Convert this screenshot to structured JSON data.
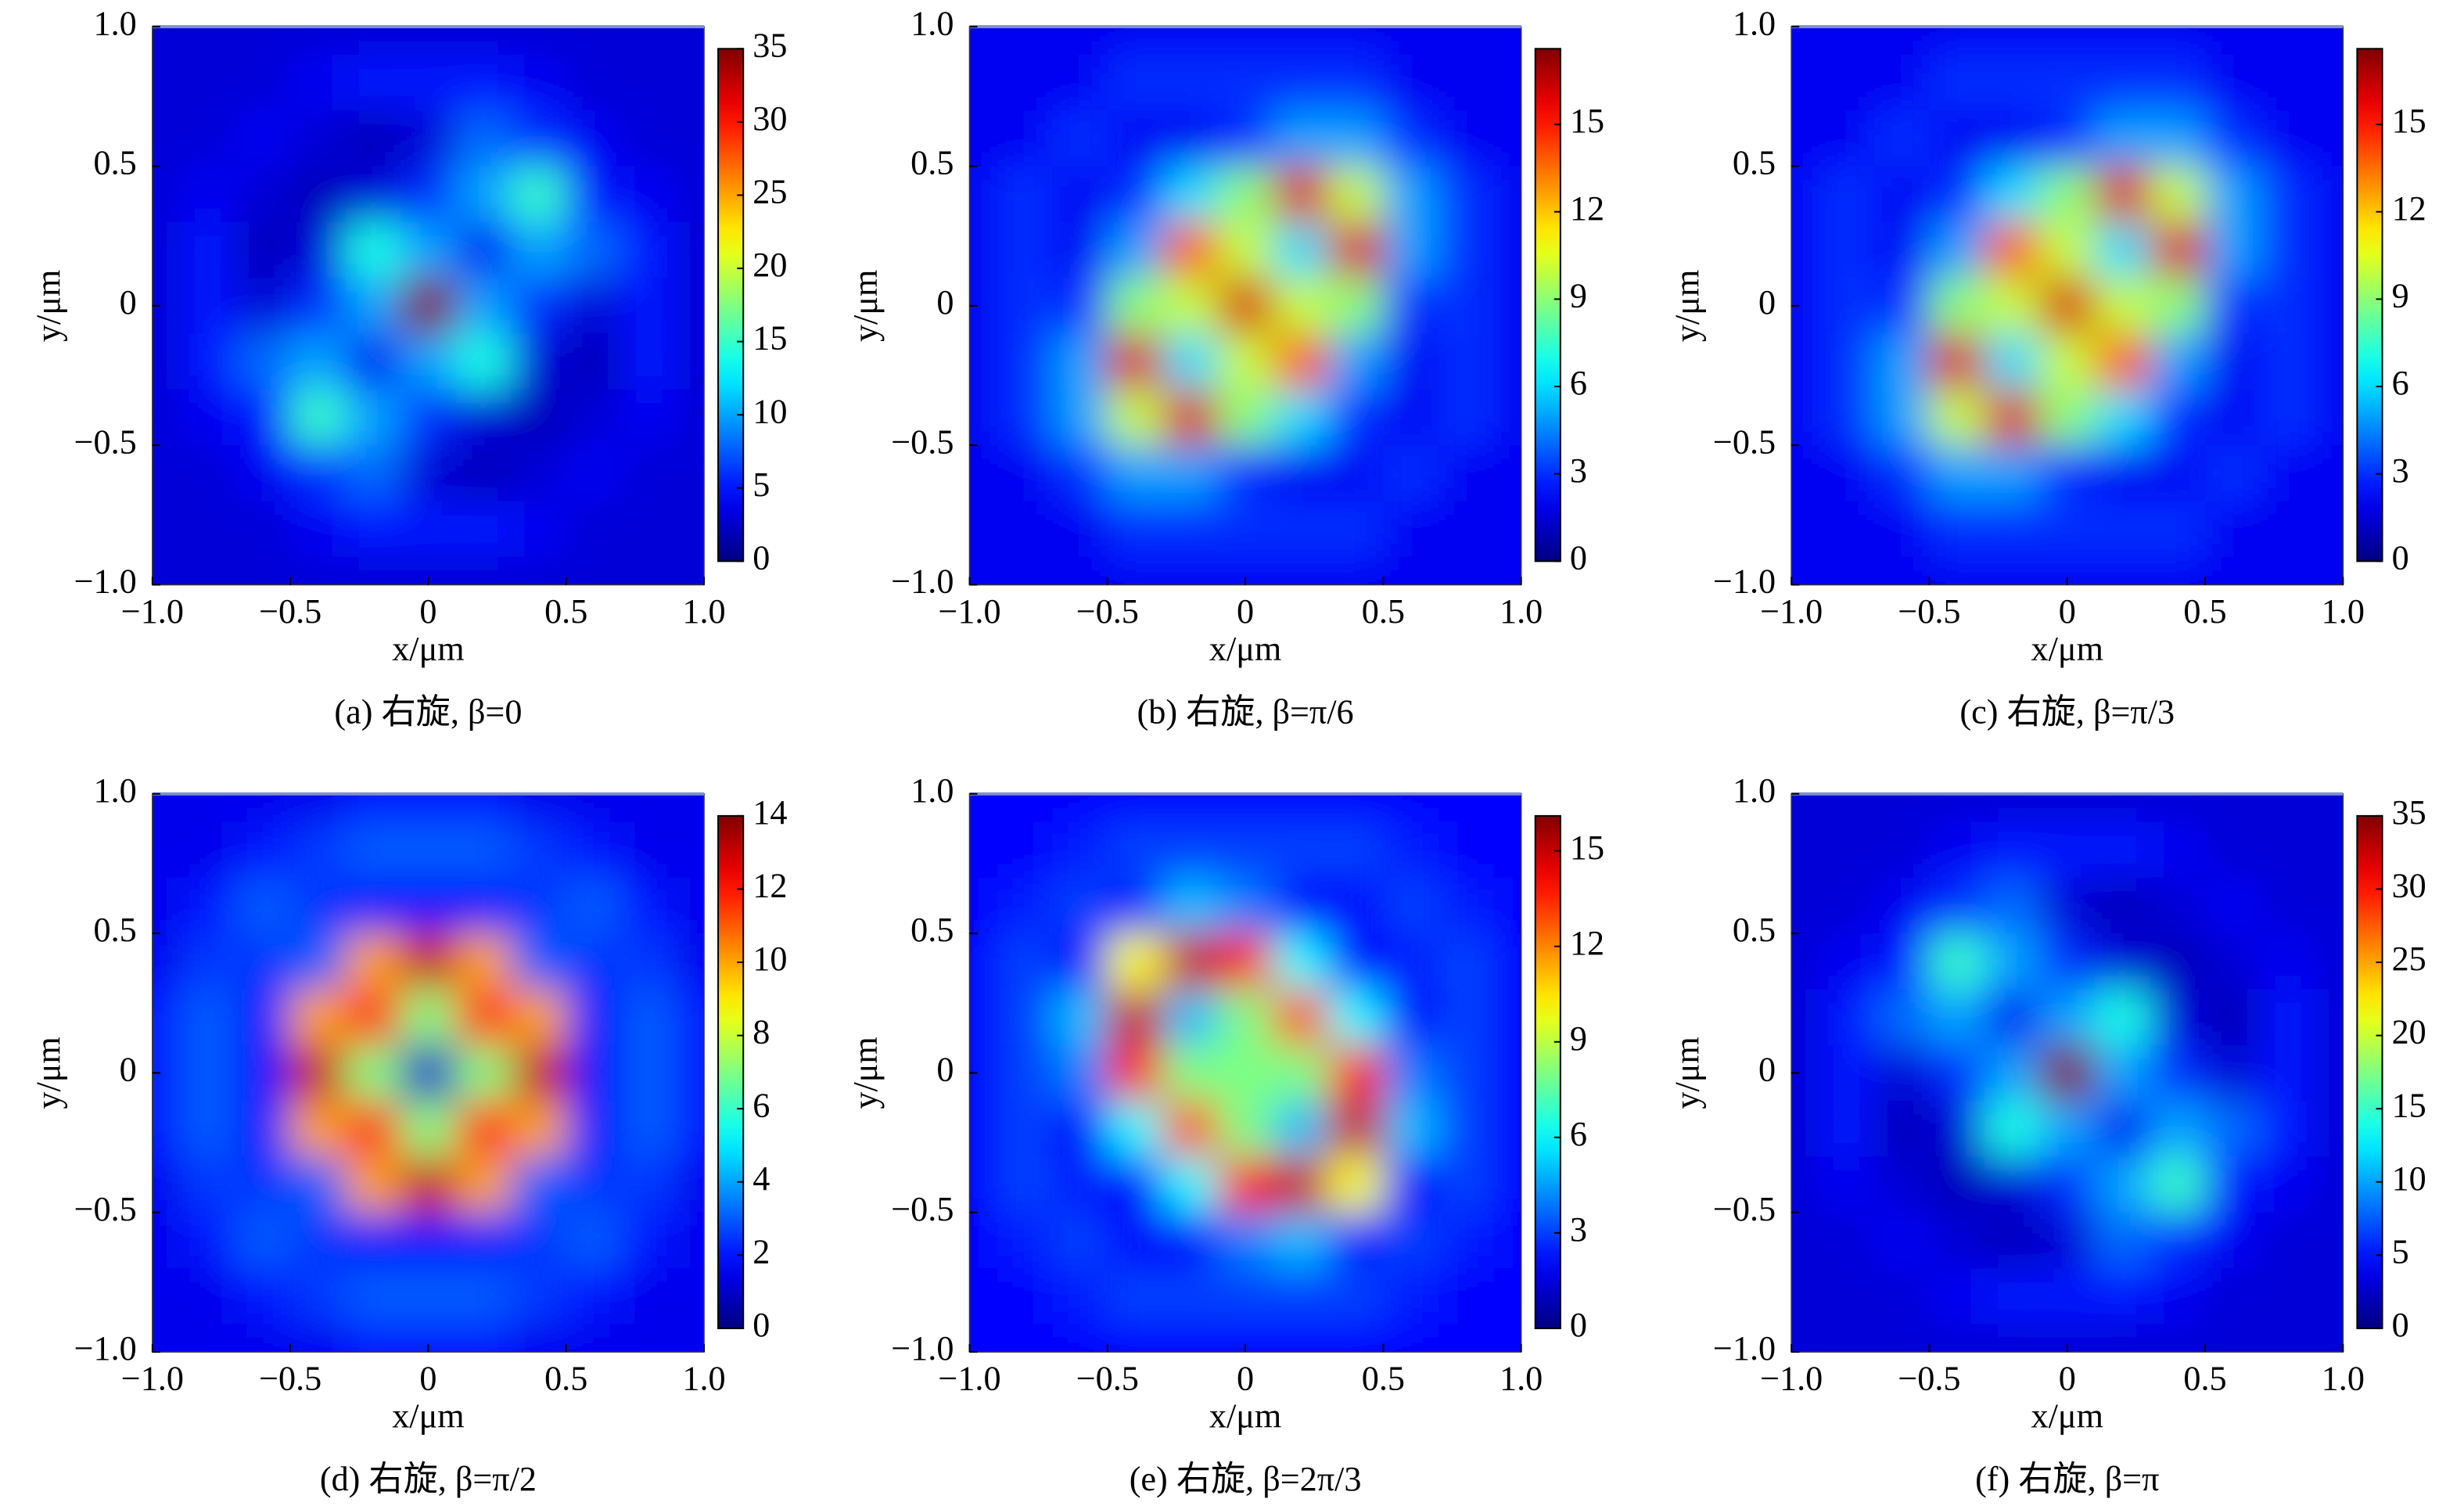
{
  "chart_data": [
    {
      "type": "heatmap",
      "caption": "(a) 右旋, β=0",
      "xlabel": "x/μm",
      "ylabel": "y/μm",
      "colormap": "jet",
      "x": [
        -1,
        -0.8,
        -0.6,
        -0.4,
        -0.2,
        0,
        0.2,
        0.4,
        0.6,
        0.8,
        1
      ],
      "y": [
        1,
        0.8,
        0.6,
        0.4,
        0.2,
        0,
        -0.2,
        -0.4,
        -0.6,
        -0.8,
        -1
      ],
      "z": [
        [
          3,
          3,
          3,
          3,
          3,
          3,
          3,
          3,
          3,
          3,
          3
        ],
        [
          3,
          3,
          3,
          4,
          5,
          5,
          5,
          4,
          3,
          3,
          3
        ],
        [
          3,
          3,
          4,
          3,
          2,
          3,
          8,
          6,
          4,
          3,
          3
        ],
        [
          3,
          4,
          3,
          2,
          3,
          6,
          10,
          15,
          5,
          4,
          3
        ],
        [
          3,
          5,
          2,
          3,
          14,
          10,
          4,
          10,
          8,
          5,
          3
        ],
        [
          3,
          5,
          3,
          6,
          10,
          35,
          10,
          6,
          3,
          5,
          3
        ],
        [
          3,
          5,
          8,
          10,
          4,
          10,
          14,
          3,
          2,
          5,
          3
        ],
        [
          3,
          4,
          5,
          15,
          10,
          6,
          3,
          2,
          3,
          4,
          3
        ],
        [
          3,
          3,
          4,
          6,
          8,
          3,
          2,
          3,
          4,
          3,
          3
        ],
        [
          3,
          3,
          3,
          4,
          5,
          5,
          5,
          4,
          3,
          3,
          3
        ],
        [
          3,
          3,
          3,
          3,
          3,
          3,
          3,
          3,
          3,
          3,
          3
        ]
      ],
      "xlim": [
        -1,
        1
      ],
      "ylim": [
        -1,
        1
      ],
      "xticks": [
        {
          "value": -1,
          "label": "−1.0"
        },
        {
          "value": -0.5,
          "label": "−0.5"
        },
        0,
        0.5,
        {
          "value": 1,
          "label": "1.0"
        }
      ],
      "yticks": [
        {
          "value": -1,
          "label": "−1.0"
        },
        {
          "value": -0.5,
          "label": "−0.5"
        },
        0,
        0.5,
        {
          "value": 1,
          "label": "1.0"
        }
      ],
      "zlim": [
        0,
        35
      ],
      "zticks": [
        0,
        5,
        10,
        15,
        20,
        25,
        30,
        35
      ]
    },
    {
      "type": "heatmap",
      "caption": "(b) 右旋, β=π/6",
      "xlabel": "x/μm",
      "ylabel": "y/μm",
      "colormap": "jet",
      "x": [
        -1,
        -0.8,
        -0.6,
        -0.4,
        -0.2,
        0,
        0.2,
        0.4,
        0.6,
        0.8,
        1
      ],
      "y": [
        1,
        0.8,
        0.6,
        0.4,
        0.2,
        0,
        -0.2,
        -0.4,
        -0.6,
        -0.8,
        -1
      ],
      "z": [
        [
          2,
          2,
          2,
          2,
          2,
          2,
          2,
          2,
          2,
          2,
          2
        ],
        [
          2,
          2,
          2,
          3,
          3,
          3,
          3,
          3,
          2,
          2,
          2
        ],
        [
          2,
          2,
          3,
          2,
          2,
          3,
          5,
          5,
          3,
          2,
          2
        ],
        [
          2,
          3,
          2,
          3,
          6,
          9,
          16,
          10,
          5,
          3,
          2
        ],
        [
          2,
          3,
          2,
          5,
          14,
          10,
          6,
          16,
          5,
          3,
          2
        ],
        [
          2,
          3,
          3,
          9,
          10,
          16,
          10,
          9,
          3,
          3,
          2
        ],
        [
          2,
          3,
          5,
          16,
          6,
          10,
          14,
          5,
          2,
          3,
          2
        ],
        [
          2,
          3,
          5,
          10,
          16,
          9,
          6,
          3,
          2,
          3,
          2
        ],
        [
          2,
          2,
          3,
          5,
          5,
          3,
          2,
          2,
          3,
          2,
          2
        ],
        [
          2,
          2,
          2,
          3,
          3,
          3,
          3,
          3,
          2,
          2,
          2
        ],
        [
          2,
          2,
          2,
          2,
          2,
          2,
          2,
          2,
          2,
          2,
          2
        ]
      ],
      "xlim": [
        -1,
        1
      ],
      "ylim": [
        -1,
        1
      ],
      "xticks": [
        {
          "value": -1,
          "label": "−1.0"
        },
        {
          "value": -0.5,
          "label": "−0.5"
        },
        0,
        0.5,
        {
          "value": 1,
          "label": "1.0"
        }
      ],
      "yticks": [
        {
          "value": -1,
          "label": "−1.0"
        },
        {
          "value": -0.5,
          "label": "−0.5"
        },
        0,
        0.5,
        {
          "value": 1,
          "label": "1.0"
        }
      ],
      "zlim": [
        0,
        17.6
      ],
      "zticks": [
        0,
        3,
        6,
        9,
        12,
        15
      ]
    },
    {
      "type": "heatmap",
      "caption": "(c) 右旋, β=π/3",
      "xlabel": "x/μm",
      "ylabel": "y/μm",
      "colormap": "jet",
      "x": [
        -1,
        -0.8,
        -0.6,
        -0.4,
        -0.2,
        0,
        0.2,
        0.4,
        0.6,
        0.8,
        1
      ],
      "y": [
        1,
        0.8,
        0.6,
        0.4,
        0.2,
        0,
        -0.2,
        -0.4,
        -0.6,
        -0.8,
        -1
      ],
      "z": [
        [
          2,
          2,
          2,
          2,
          2,
          2,
          2,
          2,
          2,
          2,
          2
        ],
        [
          2,
          2,
          2,
          3,
          3,
          3,
          3,
          3,
          2,
          2,
          2
        ],
        [
          2,
          2,
          3,
          2,
          2,
          3,
          5,
          5,
          3,
          2,
          2
        ],
        [
          2,
          3,
          2,
          3,
          6,
          9,
          16,
          10,
          5,
          3,
          2
        ],
        [
          2,
          3,
          2,
          5,
          14,
          10,
          6,
          16,
          5,
          3,
          2
        ],
        [
          2,
          3,
          3,
          9,
          10,
          16,
          10,
          9,
          3,
          3,
          2
        ],
        [
          2,
          3,
          5,
          16,
          6,
          10,
          14,
          5,
          2,
          3,
          2
        ],
        [
          2,
          3,
          5,
          10,
          16,
          9,
          6,
          3,
          2,
          3,
          2
        ],
        [
          2,
          2,
          3,
          5,
          5,
          3,
          2,
          2,
          3,
          2,
          2
        ],
        [
          2,
          2,
          2,
          3,
          3,
          3,
          3,
          3,
          2,
          2,
          2
        ],
        [
          2,
          2,
          2,
          2,
          2,
          2,
          2,
          2,
          2,
          2,
          2
        ]
      ],
      "xlim": [
        -1,
        1
      ],
      "ylim": [
        -1,
        1
      ],
      "xticks": [
        {
          "value": -1,
          "label": "−1.0"
        },
        {
          "value": -0.5,
          "label": "−0.5"
        },
        0,
        0.5,
        {
          "value": 1,
          "label": "1.0"
        }
      ],
      "yticks": [
        {
          "value": -1,
          "label": "−1.0"
        },
        {
          "value": -0.5,
          "label": "−0.5"
        },
        0,
        0.5,
        {
          "value": 1,
          "label": "1.0"
        }
      ],
      "zlim": [
        0,
        17.6
      ],
      "zticks": [
        0,
        3,
        6,
        9,
        12,
        15
      ]
    },
    {
      "type": "heatmap",
      "caption": "(d) 右旋, β=π/2",
      "xlabel": "x/μm",
      "ylabel": "y/μm",
      "colormap": "jet",
      "x": [
        -1,
        -0.8,
        -0.6,
        -0.4,
        -0.2,
        0,
        0.2,
        0.4,
        0.6,
        0.8,
        1
      ],
      "y": [
        1,
        0.8,
        0.6,
        0.4,
        0.2,
        0,
        -0.2,
        -0.4,
        -0.6,
        -0.8,
        -1
      ],
      "z": [
        [
          1.5,
          1.5,
          1.5,
          1.5,
          2,
          2,
          2,
          1.5,
          1.5,
          1.5,
          1.5
        ],
        [
          1.5,
          1.5,
          2,
          2.5,
          3,
          3,
          3,
          2.5,
          2,
          1.5,
          1.5
        ],
        [
          1.5,
          2,
          3,
          2.5,
          2,
          2,
          2,
          2.5,
          3,
          2,
          1.5
        ],
        [
          1.5,
          2.5,
          2.5,
          3,
          10,
          13,
          10,
          3,
          2.5,
          2.5,
          1.5
        ],
        [
          2,
          3,
          2,
          10,
          12,
          7,
          12,
          10,
          2,
          3,
          2
        ],
        [
          2,
          3,
          2,
          13,
          7,
          1,
          7,
          13,
          2,
          3,
          2
        ],
        [
          2,
          3,
          2,
          10,
          12,
          7,
          12,
          10,
          2,
          3,
          2
        ],
        [
          1.5,
          2.5,
          2.5,
          3,
          10,
          13,
          10,
          3,
          2.5,
          2.5,
          1.5
        ],
        [
          1.5,
          2,
          3,
          2.5,
          2,
          2,
          2,
          2.5,
          3,
          2,
          1.5
        ],
        [
          1.5,
          1.5,
          2,
          2.5,
          3,
          3,
          3,
          2.5,
          2,
          1.5,
          1.5
        ],
        [
          1.5,
          1.5,
          1.5,
          1.5,
          2,
          2,
          2,
          1.5,
          1.5,
          1.5,
          1.5
        ]
      ],
      "xlim": [
        -1,
        1
      ],
      "ylim": [
        -1,
        1
      ],
      "xticks": [
        {
          "value": -1,
          "label": "−1.0"
        },
        {
          "value": -0.5,
          "label": "−0.5"
        },
        0,
        0.5,
        {
          "value": 1,
          "label": "1.0"
        }
      ],
      "yticks": [
        {
          "value": -1,
          "label": "−1.0"
        },
        {
          "value": -0.5,
          "label": "−0.5"
        },
        0,
        0.5,
        {
          "value": 1,
          "label": "1.0"
        }
      ],
      "zlim": [
        0,
        14
      ],
      "zticks": [
        0,
        2,
        4,
        6,
        8,
        10,
        12,
        14
      ]
    },
    {
      "type": "heatmap",
      "caption": "(e) 右旋, β=2π/3",
      "xlabel": "x/μm",
      "ylabel": "y/μm",
      "colormap": "jet",
      "x": [
        -1,
        -0.8,
        -0.6,
        -0.4,
        -0.2,
        0,
        0.2,
        0.4,
        0.6,
        0.8,
        1
      ],
      "y": [
        1,
        0.8,
        0.6,
        0.4,
        0.2,
        0,
        -0.2,
        -0.4,
        -0.6,
        -0.8,
        -1
      ],
      "z": [
        [
          2,
          2,
          2,
          2,
          2,
          2,
          2,
          2,
          2,
          2,
          2
        ],
        [
          2,
          2,
          2.5,
          3,
          3,
          3,
          3,
          3,
          2.5,
          2,
          2
        ],
        [
          2,
          2.5,
          3,
          2.5,
          5,
          4,
          2,
          2,
          3,
          2.5,
          2
        ],
        [
          2,
          3,
          2,
          10,
          15,
          14,
          6,
          2,
          2.5,
          3,
          2
        ],
        [
          2,
          3,
          5,
          15,
          5,
          8,
          13,
          6,
          2,
          3,
          2
        ],
        [
          2,
          3,
          4,
          14,
          8,
          8,
          8,
          14,
          4,
          3,
          2
        ],
        [
          2,
          3,
          2,
          6,
          13,
          8,
          5,
          15,
          5,
          3,
          2
        ],
        [
          2,
          3,
          2.5,
          2,
          6,
          14,
          15,
          10,
          2,
          3,
          2
        ],
        [
          2,
          2.5,
          3,
          2,
          2,
          4,
          5,
          2.5,
          3,
          2.5,
          2
        ],
        [
          2,
          2,
          2.5,
          3,
          3,
          3,
          3,
          3,
          2.5,
          2,
          2
        ],
        [
          2,
          2,
          2,
          2,
          2,
          2,
          2,
          2,
          2,
          2,
          2
        ]
      ],
      "xlim": [
        -1,
        1
      ],
      "ylim": [
        -1,
        1
      ],
      "xticks": [
        {
          "value": -1,
          "label": "−1.0"
        },
        {
          "value": -0.5,
          "label": "−0.5"
        },
        0,
        0.5,
        {
          "value": 1,
          "label": "1.0"
        }
      ],
      "yticks": [
        {
          "value": -1,
          "label": "−1.0"
        },
        {
          "value": -0.5,
          "label": "−0.5"
        },
        0,
        0.5,
        {
          "value": 1,
          "label": "1.0"
        }
      ],
      "zlim": [
        0,
        16.1
      ],
      "zticks": [
        0,
        3,
        6,
        9,
        12,
        15
      ]
    },
    {
      "type": "heatmap",
      "caption": "(f) 右旋, β=π",
      "xlabel": "x/μm",
      "ylabel": "y/μm",
      "colormap": "jet",
      "x": [
        -1,
        -0.8,
        -0.6,
        -0.4,
        -0.2,
        0,
        0.2,
        0.4,
        0.6,
        0.8,
        1
      ],
      "y": [
        1,
        0.8,
        0.6,
        0.4,
        0.2,
        0,
        -0.2,
        -0.4,
        -0.6,
        -0.8,
        -1
      ],
      "z": [
        [
          3,
          3,
          3,
          3,
          3,
          3,
          3,
          3,
          3,
          3,
          3
        ],
        [
          3,
          3,
          3,
          4,
          5,
          5,
          5,
          4,
          3,
          3,
          3
        ],
        [
          3,
          3,
          4,
          6,
          8,
          3,
          2,
          3,
          4,
          3,
          3
        ],
        [
          3,
          4,
          5,
          15,
          10,
          6,
          3,
          2,
          3,
          4,
          3
        ],
        [
          3,
          5,
          8,
          10,
          4,
          10,
          14,
          3,
          2,
          5,
          3
        ],
        [
          3,
          5,
          3,
          6,
          10,
          35,
          10,
          6,
          3,
          5,
          3
        ],
        [
          3,
          5,
          2,
          3,
          14,
          10,
          4,
          10,
          8,
          5,
          3
        ],
        [
          3,
          4,
          3,
          2,
          3,
          6,
          10,
          15,
          5,
          4,
          3
        ],
        [
          3,
          3,
          4,
          3,
          2,
          3,
          8,
          6,
          4,
          3,
          3
        ],
        [
          3,
          3,
          3,
          4,
          5,
          5,
          5,
          4,
          3,
          3,
          3
        ],
        [
          3,
          3,
          3,
          3,
          3,
          3,
          3,
          3,
          3,
          3,
          3
        ]
      ],
      "xlim": [
        -1,
        1
      ],
      "ylim": [
        -1,
        1
      ],
      "xticks": [
        {
          "value": -1,
          "label": "−1.0"
        },
        {
          "value": -0.5,
          "label": "−0.5"
        },
        0,
        0.5,
        {
          "value": 1,
          "label": "1.0"
        }
      ],
      "yticks": [
        {
          "value": -1,
          "label": "−1.0"
        },
        {
          "value": -0.5,
          "label": "−0.5"
        },
        0,
        0.5,
        {
          "value": 1,
          "label": "1.0"
        }
      ],
      "zlim": [
        0,
        35
      ],
      "zticks": [
        0,
        5,
        10,
        15,
        20,
        25,
        30,
        35
      ]
    }
  ]
}
